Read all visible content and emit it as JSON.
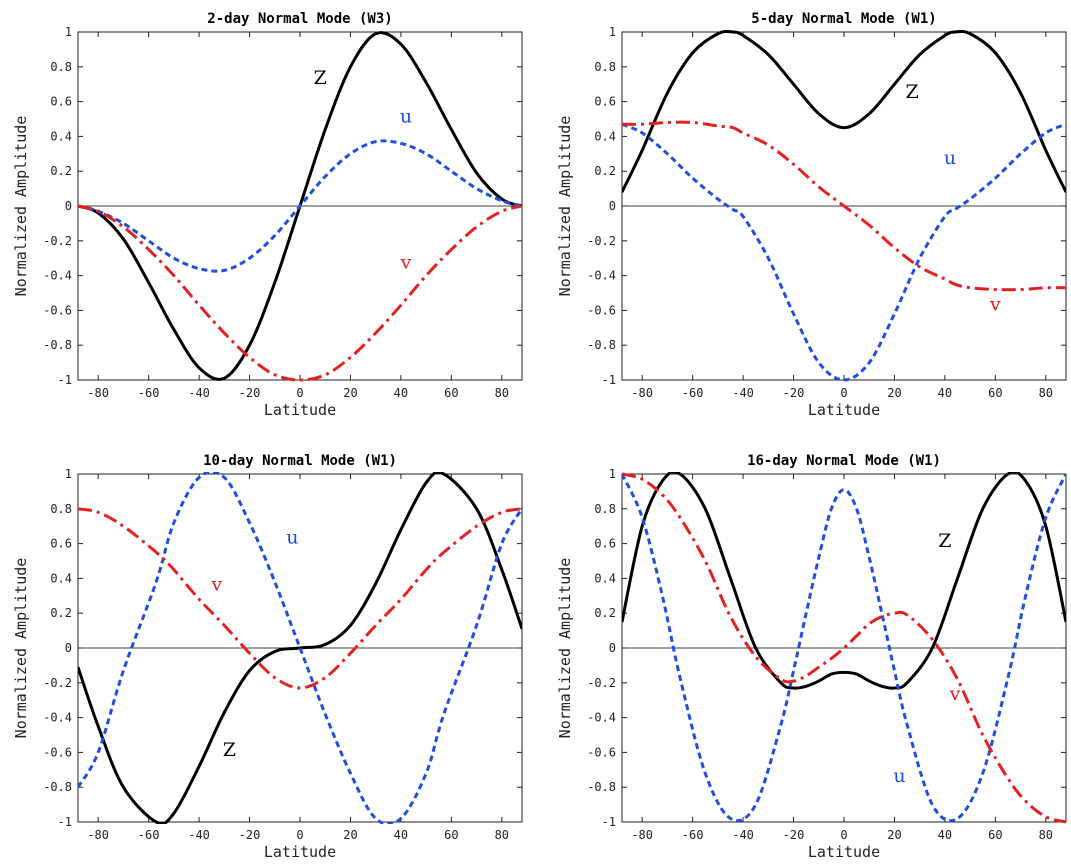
{
  "chart_data": [
    {
      "type": "line",
      "title": "2-day Normal Mode (W3)",
      "xlabel": "Latitude",
      "ylabel": "Normalized Amplitude",
      "xlim": [
        -88,
        88
      ],
      "ylim": [
        -1,
        1
      ],
      "xticks": [
        -80,
        -60,
        -40,
        -20,
        0,
        20,
        40,
        60,
        80
      ],
      "yticks": [
        -1,
        -0.8,
        -0.6,
        -0.4,
        -0.2,
        0,
        0.2,
        0.4,
        0.6,
        0.8,
        1
      ],
      "ytick_labels": [
        "-1",
        "-0.8",
        "-0.6",
        "-0.4",
        "-0.2",
        "0",
        "0.2",
        "0.4",
        "0.6",
        "0.8",
        "1"
      ],
      "x": [
        -88,
        -80,
        -70,
        -60,
        -50,
        -40,
        -30,
        -20,
        -10,
        0,
        10,
        20,
        30,
        40,
        50,
        60,
        70,
        80,
        88
      ],
      "series": [
        {
          "name": "Z",
          "color": "#000000",
          "style": "solid",
          "label_pos": [
            8,
            0.7
          ],
          "values": [
            0.0,
            -0.04,
            -0.19,
            -0.44,
            -0.71,
            -0.93,
            -0.99,
            -0.8,
            -0.44,
            0.0,
            0.44,
            0.8,
            0.99,
            0.93,
            0.71,
            0.44,
            0.19,
            0.04,
            0.0
          ]
        },
        {
          "name": "u",
          "color": "#1f4fe0",
          "style": "dash",
          "label_pos": [
            42,
            0.48
          ],
          "values": [
            0.0,
            -0.03,
            -0.1,
            -0.2,
            -0.3,
            -0.36,
            -0.37,
            -0.3,
            -0.17,
            0.0,
            0.17,
            0.3,
            0.37,
            0.36,
            0.3,
            0.2,
            0.1,
            0.03,
            0.0
          ]
        },
        {
          "name": "v",
          "color": "#e52020",
          "style": "dashdot",
          "label_pos": [
            42,
            -0.36
          ],
          "values": [
            0.0,
            -0.03,
            -0.12,
            -0.25,
            -0.4,
            -0.57,
            -0.73,
            -0.87,
            -0.97,
            -1.0,
            -0.97,
            -0.87,
            -0.73,
            -0.57,
            -0.4,
            -0.25,
            -0.12,
            -0.03,
            0.0
          ]
        }
      ]
    },
    {
      "type": "line",
      "title": "5-day Normal Mode (W1)",
      "xlabel": "Latitude",
      "ylabel": "Normalized Amplitude",
      "xlim": [
        -88,
        88
      ],
      "ylim": [
        -1,
        1
      ],
      "xticks": [
        -80,
        -60,
        -40,
        -20,
        0,
        20,
        40,
        60,
        80
      ],
      "yticks": [
        -1,
        -0.8,
        -0.6,
        -0.4,
        -0.2,
        0,
        0.2,
        0.4,
        0.6,
        0.8,
        1
      ],
      "ytick_labels": [
        "-1",
        "-0.8",
        "-0.6",
        "-0.4",
        "-0.2",
        "0",
        "0.2",
        "0.4",
        "0.6",
        "0.8",
        "1"
      ],
      "x": [
        -88,
        -80,
        -70,
        -60,
        -50,
        -44,
        -40,
        -30,
        -20,
        -10,
        0,
        10,
        20,
        30,
        40,
        44,
        50,
        60,
        70,
        80,
        88
      ],
      "series": [
        {
          "name": "Z",
          "color": "#000000",
          "style": "solid",
          "label_pos": [
            27,
            0.62
          ],
          "values": [
            0.08,
            0.32,
            0.65,
            0.88,
            0.99,
            1.0,
            0.98,
            0.87,
            0.7,
            0.53,
            0.45,
            0.53,
            0.7,
            0.87,
            0.98,
            1.0,
            0.99,
            0.88,
            0.65,
            0.32,
            0.08
          ]
        },
        {
          "name": "u",
          "color": "#1f4fe0",
          "style": "dash",
          "label_pos": [
            42,
            0.24
          ],
          "values": [
            0.47,
            0.42,
            0.3,
            0.16,
            0.04,
            -0.02,
            -0.06,
            -0.3,
            -0.62,
            -0.9,
            -1.0,
            -0.9,
            -0.62,
            -0.3,
            -0.06,
            -0.02,
            0.04,
            0.16,
            0.3,
            0.42,
            0.47
          ]
        },
        {
          "name": "v",
          "color": "#e52020",
          "style": "dashdot",
          "label_pos": [
            60,
            -0.6
          ],
          "values": [
            0.47,
            0.47,
            0.48,
            0.48,
            0.46,
            0.45,
            0.42,
            0.35,
            0.24,
            0.11,
            0.0,
            -0.11,
            -0.24,
            -0.35,
            -0.42,
            -0.45,
            -0.47,
            -0.48,
            -0.48,
            -0.47,
            -0.47
          ]
        }
      ]
    },
    {
      "type": "line",
      "title": "10-day Normal Mode (W1)",
      "xlabel": "Latitude",
      "ylabel": "Normalized Amplitude",
      "xlim": [
        -88,
        88
      ],
      "ylim": [
        -1,
        1
      ],
      "xticks": [
        -80,
        -60,
        -40,
        -20,
        0,
        20,
        40,
        60,
        80
      ],
      "yticks": [
        -1,
        -0.8,
        -0.6,
        -0.4,
        -0.2,
        0,
        0.2,
        0.4,
        0.6,
        0.8,
        1
      ],
      "ytick_labels": [
        "-1",
        "-0.8",
        "-0.6",
        "-0.4",
        "-0.2",
        "0",
        "0.2",
        "0.4",
        "0.6",
        "0.8",
        "1"
      ],
      "x": [
        -88,
        -80,
        -70,
        -57,
        -50,
        -40,
        -30,
        -20,
        -10,
        0,
        10,
        20,
        30,
        40,
        50,
        57,
        70,
        80,
        88
      ],
      "series": [
        {
          "name": "Z",
          "color": "#000000",
          "style": "solid",
          "label_pos": [
            -28,
            -0.62
          ],
          "values": [
            -0.11,
            -0.45,
            -0.8,
            -1.0,
            -0.95,
            -0.68,
            -0.37,
            -0.13,
            -0.02,
            0.0,
            0.02,
            0.13,
            0.37,
            0.68,
            0.95,
            1.0,
            0.8,
            0.45,
            0.11
          ]
        },
        {
          "name": "u",
          "color": "#1f4fe0",
          "style": "dash",
          "label_pos": [
            -3,
            0.6
          ],
          "values": [
            -0.8,
            -0.6,
            -0.13,
            0.38,
            0.72,
            0.98,
            0.98,
            0.72,
            0.38,
            0.0,
            -0.38,
            -0.72,
            -0.98,
            -0.98,
            -0.72,
            -0.38,
            0.13,
            0.6,
            0.8
          ]
        },
        {
          "name": "v",
          "color": "#e52020",
          "style": "dashdot",
          "label_pos": [
            -33,
            0.33
          ],
          "values": [
            0.8,
            0.78,
            0.7,
            0.55,
            0.45,
            0.28,
            0.13,
            -0.03,
            -0.17,
            -0.23,
            -0.17,
            -0.03,
            0.13,
            0.28,
            0.45,
            0.55,
            0.7,
            0.78,
            0.8
          ]
        }
      ]
    },
    {
      "type": "line",
      "title": "16-day Normal Mode (W1)",
      "xlabel": "Latitude",
      "ylabel": "Normalized Amplitude",
      "xlim": [
        -88,
        88
      ],
      "ylim": [
        -1,
        1
      ],
      "xticks": [
        -80,
        -60,
        -40,
        -20,
        0,
        20,
        40,
        60,
        80
      ],
      "yticks": [
        -1,
        -0.8,
        -0.6,
        -0.4,
        -0.2,
        0,
        0.2,
        0.4,
        0.6,
        0.8,
        1
      ],
      "ytick_labels": [
        "-1",
        "-0.8",
        "-0.6",
        "-0.4",
        "-0.2",
        "0",
        "0.2",
        "0.4",
        "0.6",
        "0.8",
        "1"
      ],
      "x": [
        -88,
        -80,
        -72,
        -65,
        -55,
        -45,
        -35,
        -25,
        -20,
        -15,
        -10,
        -5,
        0,
        5,
        10,
        15,
        20,
        25,
        35,
        45,
        55,
        65,
        72,
        80,
        88
      ],
      "series": [
        {
          "name": "Z",
          "color": "#000000",
          "style": "solid",
          "label_pos": [
            40,
            0.58
          ],
          "values": [
            0.15,
            0.7,
            0.96,
            1.0,
            0.8,
            0.4,
            0.0,
            -0.2,
            -0.23,
            -0.22,
            -0.19,
            -0.15,
            -0.14,
            -0.15,
            -0.19,
            -0.22,
            -0.23,
            -0.2,
            0.0,
            0.4,
            0.8,
            1.0,
            0.96,
            0.7,
            0.15
          ]
        },
        {
          "name": "u",
          "color": "#1f4fe0",
          "style": "dash",
          "label_pos": [
            22,
            -0.77
          ],
          "values": [
            1.0,
            0.75,
            0.3,
            -0.17,
            -0.72,
            -0.98,
            -0.9,
            -0.44,
            -0.13,
            0.2,
            0.52,
            0.8,
            0.91,
            0.8,
            0.52,
            0.2,
            -0.13,
            -0.44,
            -0.9,
            -0.98,
            -0.72,
            -0.17,
            0.3,
            0.75,
            1.0
          ]
        },
        {
          "name": "v",
          "color": "#e52020",
          "style": "dashdot",
          "label_pos": [
            44,
            -0.3
          ],
          "values": [
            1.0,
            0.97,
            0.88,
            0.75,
            0.5,
            0.18,
            -0.05,
            -0.18,
            -0.19,
            -0.16,
            -0.11,
            -0.06,
            0.0,
            0.07,
            0.14,
            0.18,
            0.2,
            0.19,
            0.05,
            -0.18,
            -0.5,
            -0.75,
            -0.88,
            -0.97,
            -1.0
          ]
        }
      ]
    }
  ]
}
